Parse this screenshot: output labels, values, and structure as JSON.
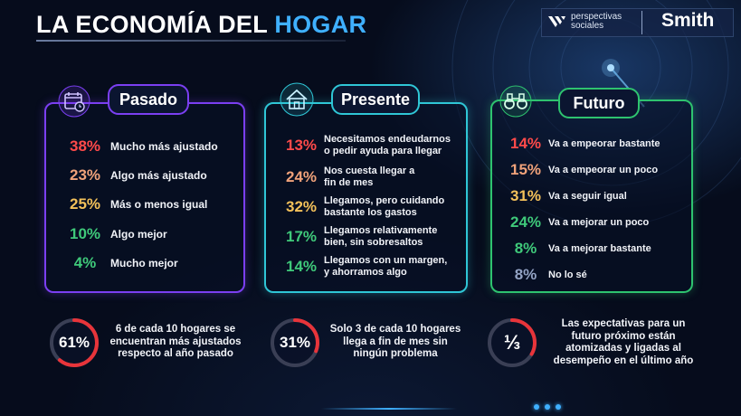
{
  "header": {
    "title_main": "LA ECONOMÍA DEL ",
    "title_highlight": "HOGAR"
  },
  "logos": {
    "ps_line1": "perspectivas",
    "ps_line2": "sociales",
    "brand": "Smith"
  },
  "colors": {
    "red": "#ff4a4a",
    "orange": "#f0a27a",
    "yellow": "#f3c15a",
    "green": "#3fc97a",
    "slate": "#93a3c4",
    "blue_accent": "#3fb0ff",
    "pasado_border": "#7b3ff2",
    "presente_border": "#2fc6d6",
    "futuro_border": "#2ec36f"
  },
  "sections": {
    "pasado": {
      "label": "Pasado",
      "icon": "calendar-clock-icon",
      "items": [
        {
          "pct": "38%",
          "text": "Mucho más ajustado",
          "color": "#ff4a4a"
        },
        {
          "pct": "23%",
          "text": "Algo más ajustado",
          "color": "#f0a27a"
        },
        {
          "pct": "25%",
          "text": "Más o menos igual",
          "color": "#f3c15a"
        },
        {
          "pct": "10%",
          "text": "Algo mejor",
          "color": "#3fc97a"
        },
        {
          "pct": "4%",
          "text": "Mucho mejor",
          "color": "#3fc97a"
        }
      ]
    },
    "presente": {
      "label": "Presente",
      "icon": "house-icon",
      "items": [
        {
          "pct": "13%",
          "line1": "Necesitamos endeudarnos",
          "line2": "o pedir ayuda para llegar",
          "color": "#ff4a4a"
        },
        {
          "pct": "24%",
          "line1": "Nos cuesta llegar a",
          "line2": "fin de mes",
          "color": "#f0a27a"
        },
        {
          "pct": "32%",
          "line1": "Llegamos, pero cuidando",
          "line2": "bastante los gastos",
          "color": "#f3c15a"
        },
        {
          "pct": "17%",
          "line1": "Llegamos relativamente",
          "line2": "bien, sin sobresaltos",
          "color": "#3fc97a"
        },
        {
          "pct": "14%",
          "line1": "Llegamos con un margen,",
          "line2": "y ahorramos algo",
          "color": "#3fc97a"
        }
      ]
    },
    "futuro": {
      "label": "Futuro",
      "icon": "binoculars-icon",
      "items": [
        {
          "pct": "14%",
          "text": "Va a empeorar bastante",
          "color": "#ff4a4a"
        },
        {
          "pct": "15%",
          "text": "Va a empeorar un poco",
          "color": "#f0a27a"
        },
        {
          "pct": "31%",
          "text": "Va a seguir igual",
          "color": "#f3c15a"
        },
        {
          "pct": "24%",
          "text": "Va a mejorar un poco",
          "color": "#3fc97a"
        },
        {
          "pct": "8%",
          "text": "Va a mejorar bastante",
          "color": "#3fc97a"
        },
        {
          "pct": "8%",
          "text": "No lo sé",
          "color": "#93a3c4"
        }
      ]
    }
  },
  "stats": [
    {
      "value": "61%",
      "fill": 0.61,
      "line1": "6 de cada 10 hogares se",
      "line2": "encuentran más ajustados",
      "line3": "respecto al año pasado"
    },
    {
      "value": "31%",
      "fill": 0.31,
      "line1": "Solo 3 de cada 10 hogares",
      "line2": "llega a fin de mes sin",
      "line3": "ningún problema"
    },
    {
      "value": "⅓",
      "fill": 0.3333,
      "line1": "Las expectativas para un",
      "line2": "futuro próximo están",
      "line3": "atomizadas y ligadas al",
      "line4": "desempeño en el último año"
    }
  ]
}
